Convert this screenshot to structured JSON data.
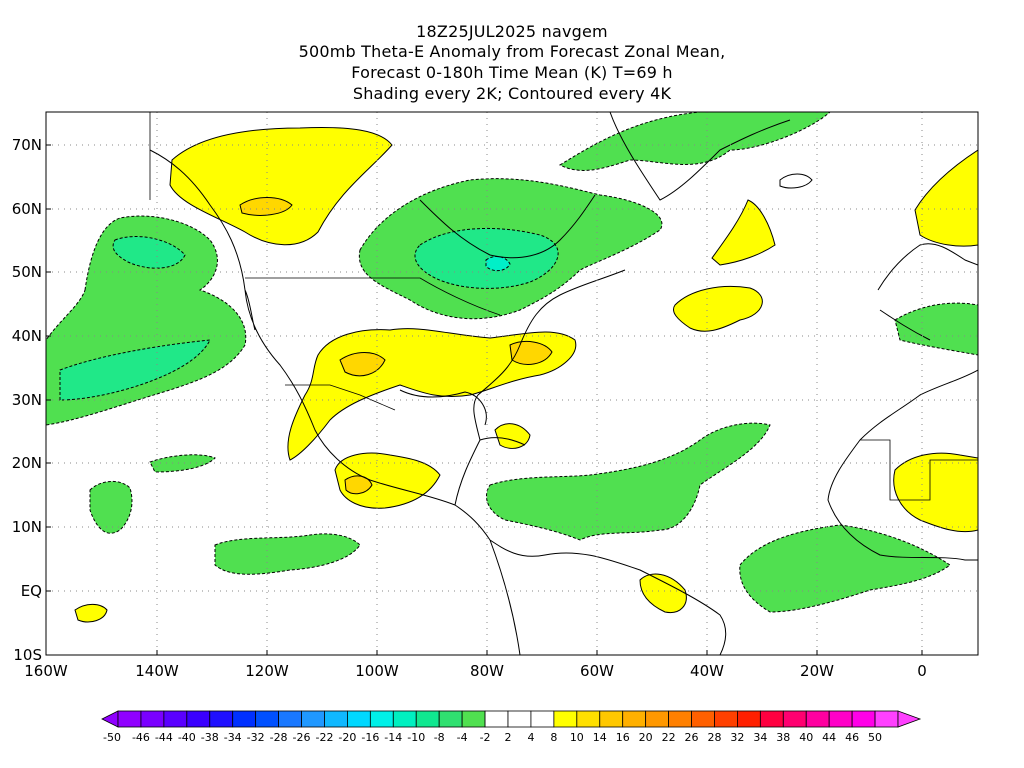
{
  "title_lines": [
    "18Z25JUL2025 navgem",
    "500mb Theta-E Anomaly from Forecast Zonal Mean,",
    "Forecast 0-180h Time Mean (K) T=69 h",
    "Shading every 2K; Contoured every 4K"
  ],
  "lat_labels": [
    "70N",
    "60N",
    "50N",
    "40N",
    "30N",
    "20N",
    "10N",
    "EQ",
    "10S"
  ],
  "lon_labels": [
    "160W",
    "140W",
    "120W",
    "100W",
    "80W",
    "60W",
    "40W",
    "20W",
    "0"
  ],
  "colorbar": {
    "labels": [
      "-50",
      "-46",
      "-44",
      "-40",
      "-38",
      "-34",
      "-32",
      "-28",
      "-26",
      "-22",
      "-20",
      "-16",
      "-14",
      "-10",
      "-8",
      "-4",
      "-2",
      "2",
      "4",
      "8",
      "10",
      "14",
      "16",
      "20",
      "22",
      "26",
      "28",
      "32",
      "34",
      "38",
      "40",
      "44",
      "46",
      "50"
    ],
    "colors": [
      "#9000ff",
      "#7a00ff",
      "#5a00ff",
      "#3a00ff",
      "#1f10ff",
      "#0030ff",
      "#0050ff",
      "#1a78ff",
      "#2098ff",
      "#10b8ff",
      "#00d8ff",
      "#00f0e8",
      "#00f0c0",
      "#10e890",
      "#30e070",
      "#50e050",
      "#ffffff",
      "#ffffff",
      "#ffffff",
      "#ffff00",
      "#ffe000",
      "#ffc800",
      "#ffb000",
      "#ff9800",
      "#ff8000",
      "#ff6000",
      "#ff4000",
      "#ff2000",
      "#ff0040",
      "#ff0070",
      "#ff00a0",
      "#ff00c8",
      "#ff00e8",
      "#ff40ff"
    ]
  },
  "colors": {
    "positive": "#ffff00",
    "positive_mid": "#ffd700",
    "positive_high": "#ffb000",
    "negative": "#50e050",
    "negative_mid": "#20e888",
    "negative_high": "#00f0c8"
  }
}
